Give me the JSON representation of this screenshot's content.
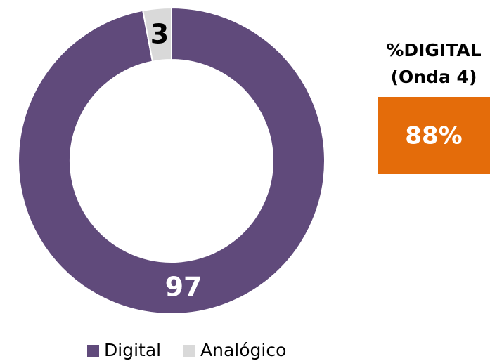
{
  "chart_data": {
    "type": "pie",
    "categories": [
      "Digital",
      "Analógico"
    ],
    "values": [
      97,
      3
    ],
    "colors": [
      "#604a7b",
      "#d9d9d9"
    ],
    "donut": true,
    "legend": "bottom"
  },
  "callout": {
    "title": "%DIGITAL",
    "subtitle": "(Onda 4)",
    "value": "88%",
    "color": "#e46c0a"
  }
}
